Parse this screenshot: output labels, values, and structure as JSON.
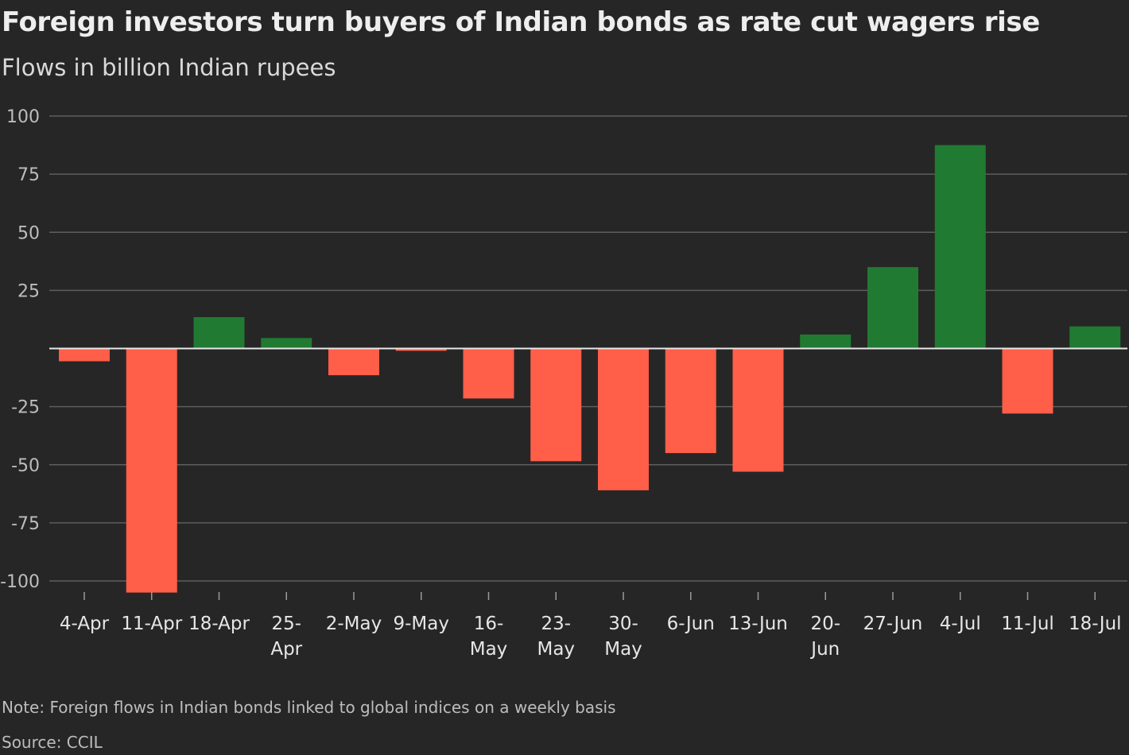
{
  "title": "Foreign investors turn buyers of Indian bonds as rate cut wagers rise",
  "subtitle": "Flows in billion Indian rupees",
  "note": "Note: Foreign flows in Indian bonds linked to global indices on a weekly basis",
  "source": "Source: CCIL",
  "colors": {
    "background": "#262626",
    "positive": "#217a31",
    "negative": "#ff5e49",
    "gridline": "#5e5e5e",
    "zero_line": "#e8e8e8",
    "tick_text": "#e6e6e6",
    "axis_text": "#bdbdbd"
  },
  "chart_data": {
    "type": "bar",
    "title": "Foreign investors turn buyers of Indian bonds as rate cut wagers rise",
    "subtitle": "Flows in billion Indian rupees",
    "xlabel": "",
    "ylabel": "",
    "ylim": [
      -100,
      100
    ],
    "yticks": [
      100,
      75,
      50,
      25,
      -25,
      -50,
      -75,
      -100
    ],
    "grid": true,
    "legend": "none",
    "categories": [
      [
        "4-Apr"
      ],
      [
        "11-Apr"
      ],
      [
        "18-Apr"
      ],
      [
        "25-",
        "Apr"
      ],
      [
        "2-May"
      ],
      [
        "9-May"
      ],
      [
        "16-",
        "May"
      ],
      [
        "23-",
        "May"
      ],
      [
        "30-",
        "May"
      ],
      [
        "6-Jun"
      ],
      [
        "13-Jun"
      ],
      [
        "20-",
        "Jun"
      ],
      [
        "27-Jun"
      ],
      [
        "4-Jul"
      ],
      [
        "11-Jul"
      ],
      [
        "18-Jul"
      ]
    ],
    "values": [
      -5.5,
      -105,
      13.5,
      4.5,
      -11.5,
      -1,
      -21.5,
      -48.5,
      -61,
      -45,
      -53,
      6,
      35,
      87.5,
      -28,
      9.5
    ]
  }
}
